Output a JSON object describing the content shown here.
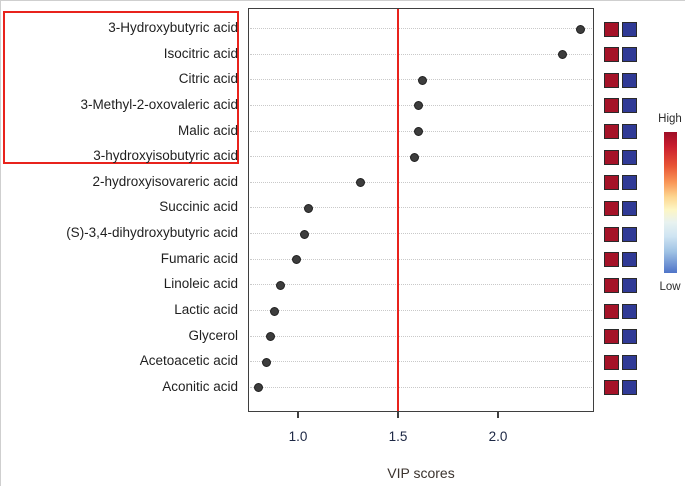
{
  "chart_data": {
    "type": "scatter",
    "variant": "vip-dot-plot",
    "title": "",
    "xlabel": "VIP scores",
    "ylabel": "",
    "categories": [
      "3-Hydroxybutyric acid",
      "Isocitric acid",
      "Citric acid",
      "3-Methyl-2-oxovaleric acid",
      "Malic acid",
      "3-hydroxyisobutyric acid",
      "2-hydroxyisovareric acid",
      "Succinic acid",
      "(S)-3,4-dihydroxybutyric acid",
      "Fumaric acid",
      "Linoleic acid",
      "Lactic acid",
      "Glycerol",
      "Acetoacetic acid",
      "Aconitic acid"
    ],
    "values": [
      2.41,
      2.32,
      1.62,
      1.6,
      1.6,
      1.58,
      1.31,
      1.05,
      1.03,
      0.99,
      0.91,
      0.88,
      0.86,
      0.84,
      0.8
    ],
    "xlim": [
      0.75,
      2.48
    ],
    "x_tick_values": [
      1.0,
      1.5,
      2.0
    ],
    "x_tick_labels": [
      "1.0",
      "1.5",
      "2.0"
    ],
    "threshold_line_x": 1.5,
    "highlighted_top_n": 6,
    "grid": "horizontal-dotted",
    "heatmap_rows": [
      [
        "high",
        "low"
      ],
      [
        "high",
        "low"
      ],
      [
        "high",
        "low"
      ],
      [
        "high",
        "low"
      ],
      [
        "high",
        "low"
      ],
      [
        "high",
        "low"
      ],
      [
        "high",
        "low"
      ],
      [
        "high",
        "low"
      ],
      [
        "high",
        "low"
      ],
      [
        "high",
        "low"
      ],
      [
        "high",
        "low"
      ],
      [
        "high",
        "low"
      ],
      [
        "high",
        "low"
      ],
      [
        "high",
        "low"
      ],
      [
        "high",
        "low"
      ]
    ],
    "legend": {
      "high_label": "High",
      "low_label": "Low"
    }
  },
  "colors": {
    "dot_fill": "#3d3d3d",
    "dot_edge": "#1f1f1f",
    "threshold_line": "#e8231c",
    "highlight_box": "#e8231c",
    "heat_high": "#a51328",
    "heat_low": "#303a96",
    "gridline": "#c9c9c9",
    "plot_border": "#3f3f3f"
  }
}
